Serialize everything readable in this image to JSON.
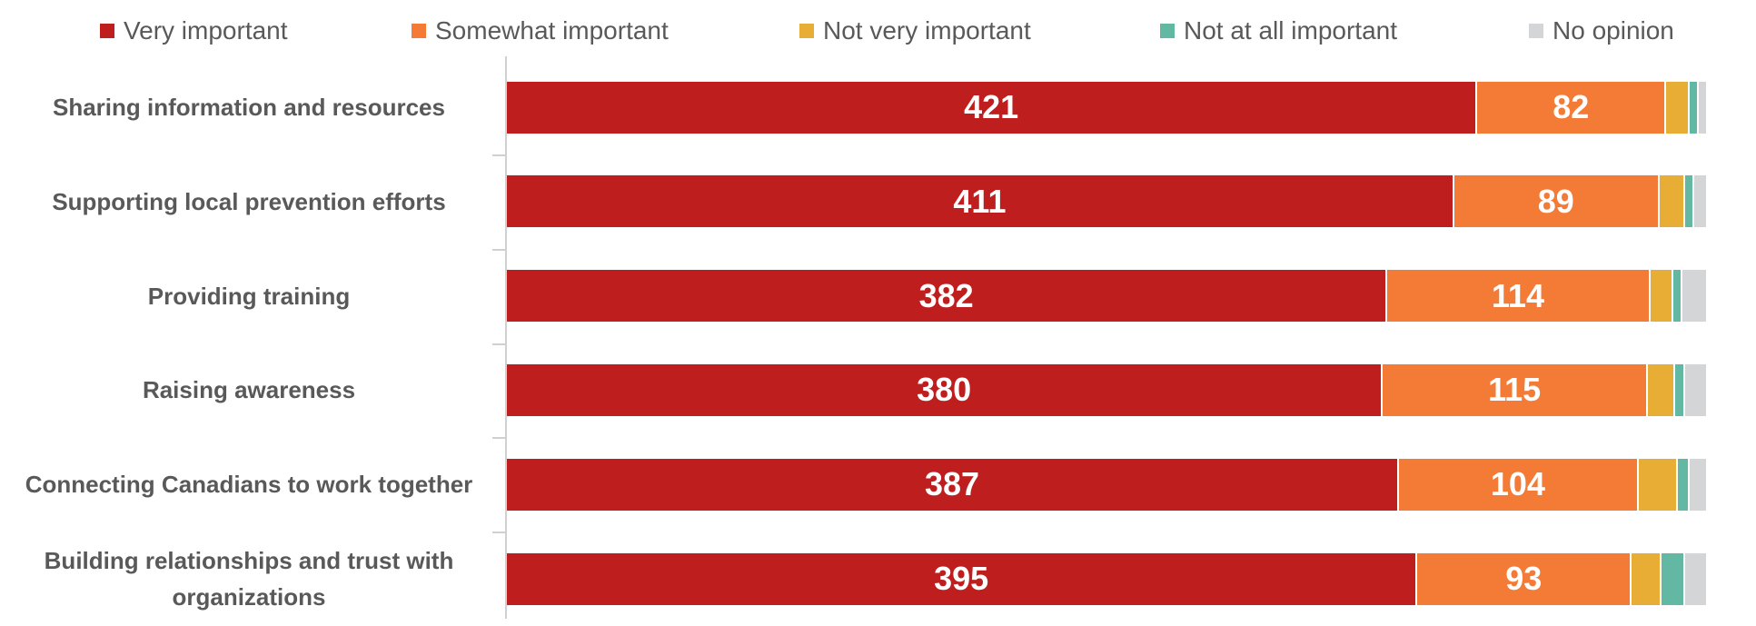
{
  "chart_data": {
    "type": "stacked-bar-horizontal",
    "categories": [
      "Sharing information and resources",
      "Supporting local prevention efforts",
      "Providing training",
      "Raising awareness",
      "Connecting Canadians to work together",
      "Building relationships and trust with organizations"
    ],
    "series": [
      {
        "name": "Very important",
        "color": "#be1e1e",
        "labels": true,
        "values": [
          421,
          411,
          382,
          380,
          387,
          395
        ]
      },
      {
        "name": "Somewhat important",
        "color": "#f47b35",
        "labels": true,
        "values": [
          82,
          89,
          114,
          115,
          104,
          93
        ]
      },
      {
        "name": "Not very important",
        "color": "#e8ad35",
        "labels": false,
        "values": [
          10,
          11,
          10,
          12,
          17,
          13
        ]
      },
      {
        "name": "Not at all important",
        "color": "#63b8a4",
        "labels": false,
        "values": [
          4,
          4,
          4,
          4,
          5,
          10
        ]
      },
      {
        "name": "No opinion",
        "color": "#d3d5d6",
        "labels": false,
        "values": [
          4,
          6,
          11,
          10,
          8,
          10
        ]
      }
    ],
    "xlim": [
      0,
      521
    ]
  }
}
